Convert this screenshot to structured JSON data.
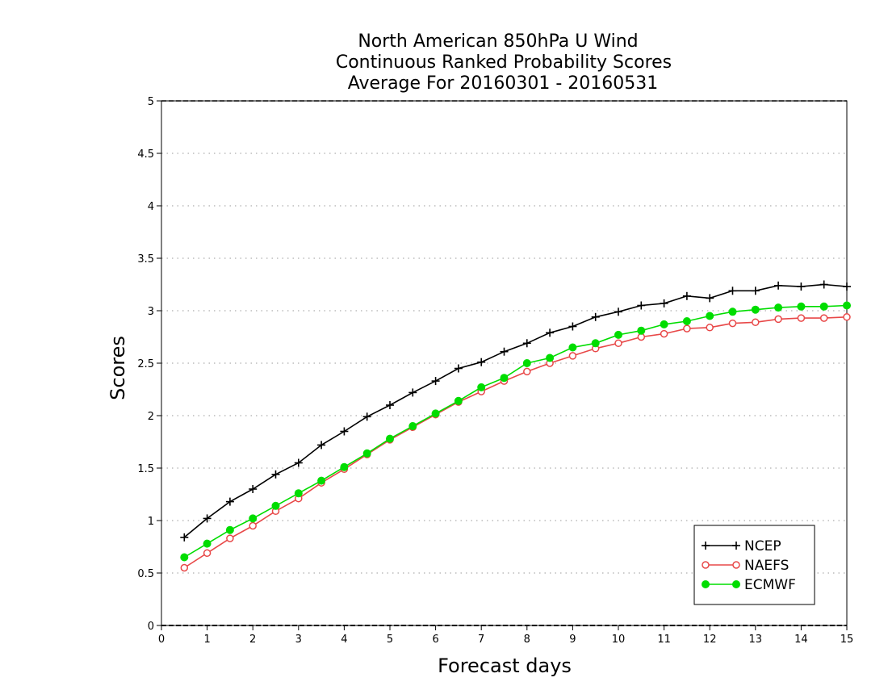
{
  "chart_data": {
    "type": "line",
    "title_lines": [
      "North American 850hPa U Wind",
      "Continuous Ranked Probability Scores",
      "Average For 20160301 - 20160531"
    ],
    "xlabel": "Forecast days",
    "ylabel": "Scores",
    "xlim": [
      0,
      15
    ],
    "ylim": [
      0,
      5
    ],
    "x_ticks": [
      0,
      1,
      2,
      3,
      4,
      5,
      6,
      7,
      8,
      9,
      10,
      11,
      12,
      13,
      14,
      15
    ],
    "y_ticks": [
      0,
      0.5,
      1,
      1.5,
      2,
      2.5,
      3,
      3.5,
      4,
      4.5,
      5
    ],
    "x_tick_labels": [
      "0",
      "1",
      "2",
      "3",
      "4",
      "5",
      "6",
      "7",
      "8",
      "9",
      "10",
      "11",
      "12",
      "13",
      "14",
      "15"
    ],
    "y_tick_labels": [
      "0",
      "0.5",
      "1",
      "1.5",
      "2",
      "2.5",
      "3",
      "3.5",
      "4",
      "4.5",
      "5"
    ],
    "grid": "horizontal dotted",
    "legend_position": "bottom-right",
    "x": [
      0.5,
      1,
      1.5,
      2,
      2.5,
      3,
      3.5,
      4,
      4.5,
      5,
      5.5,
      6,
      6.5,
      7,
      7.5,
      8,
      8.5,
      9,
      9.5,
      10,
      10.5,
      11,
      11.5,
      12,
      12.5,
      13,
      13.5,
      14,
      14.5,
      15
    ],
    "series": [
      {
        "name": "NCEP",
        "color": "#000000",
        "marker": "plus",
        "values": [
          0.84,
          1.02,
          1.18,
          1.3,
          1.44,
          1.55,
          1.72,
          1.85,
          1.99,
          2.1,
          2.22,
          2.33,
          2.45,
          2.51,
          2.61,
          2.69,
          2.79,
          2.85,
          2.94,
          2.99,
          3.05,
          3.07,
          3.14,
          3.12,
          3.19,
          3.19,
          3.24,
          3.23,
          3.25,
          3.23
        ]
      },
      {
        "name": "NAEFS",
        "color": "#e84848",
        "marker": "open-circle",
        "values": [
          0.55,
          0.69,
          0.83,
          0.95,
          1.09,
          1.21,
          1.36,
          1.49,
          1.63,
          1.77,
          1.89,
          2.01,
          2.13,
          2.23,
          2.33,
          2.42,
          2.5,
          2.57,
          2.64,
          2.69,
          2.75,
          2.78,
          2.83,
          2.84,
          2.88,
          2.89,
          2.92,
          2.93,
          2.93,
          2.94
        ]
      },
      {
        "name": "ECMWF",
        "color": "#00dd00",
        "marker": "filled-circle",
        "values": [
          0.65,
          0.78,
          0.91,
          1.02,
          1.14,
          1.26,
          1.38,
          1.51,
          1.64,
          1.78,
          1.9,
          2.02,
          2.14,
          2.27,
          2.36,
          2.5,
          2.55,
          2.65,
          2.69,
          2.77,
          2.81,
          2.87,
          2.9,
          2.95,
          2.99,
          3.01,
          3.03,
          3.04,
          3.04,
          3.05
        ]
      }
    ]
  }
}
